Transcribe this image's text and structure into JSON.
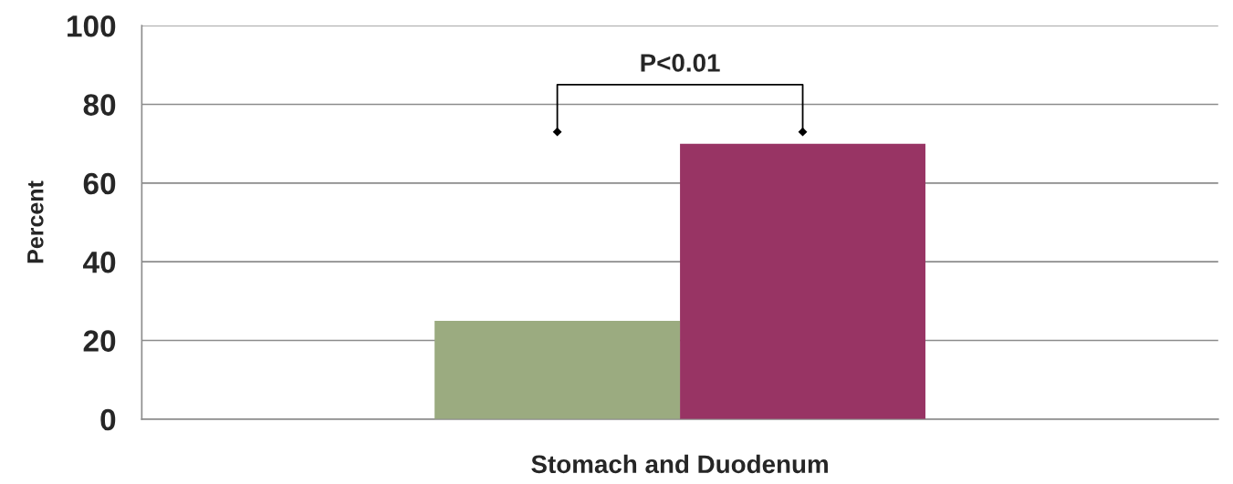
{
  "chart_data": {
    "type": "bar",
    "ylabel": "Percent",
    "categories": [
      "Stomach and Duodenum"
    ],
    "series": [
      {
        "color": "#9bab80",
        "values": [
          25
        ]
      },
      {
        "color": "#983464",
        "values": [
          70
        ]
      }
    ],
    "ylim": [
      0,
      100
    ],
    "yticks": [
      0,
      20,
      40,
      60,
      80,
      100
    ],
    "grid": "y",
    "legend": false,
    "annotations": [
      "P<0.01"
    ]
  }
}
